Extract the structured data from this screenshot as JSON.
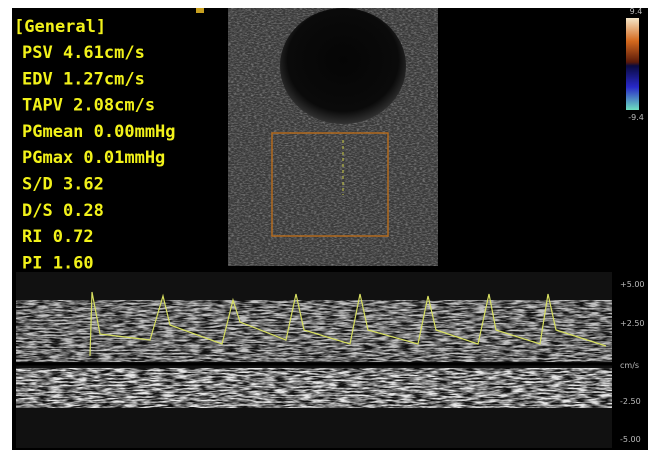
{
  "measurements": {
    "title": "[General]",
    "rows": [
      "PSV 4.61cm/s",
      "EDV 1.27cm/s",
      "TAPV 2.08cm/s",
      "PGmean 0.00mmHg",
      "PGmax 0.01mmHg",
      "S/D 3.62",
      "D/S 0.28",
      "RI  0.72",
      "PI  1.60"
    ]
  },
  "color_scale": {
    "top": "9.4",
    "bottom": "-9.4"
  },
  "doppler_scale": {
    "labels": [
      "+5.00",
      "+2.50",
      "cm/s",
      "-2.50",
      "-5.00"
    ]
  }
}
